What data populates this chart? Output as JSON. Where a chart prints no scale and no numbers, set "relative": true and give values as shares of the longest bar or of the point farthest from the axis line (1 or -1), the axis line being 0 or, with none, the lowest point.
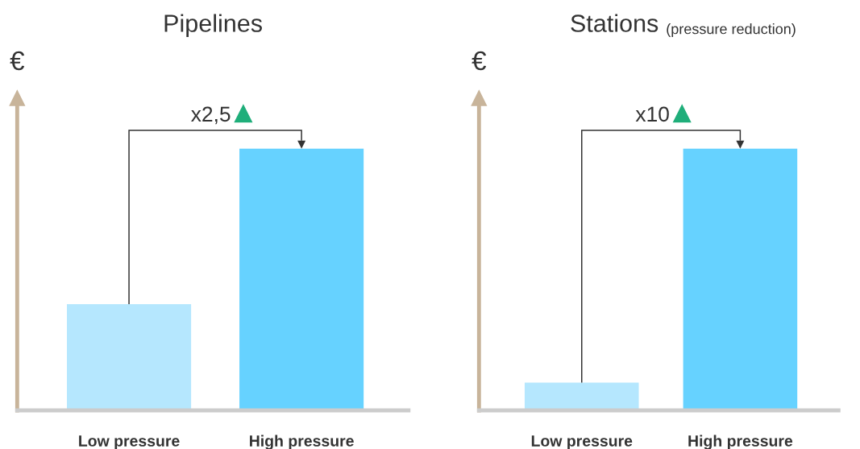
{
  "chart_data": [
    {
      "type": "bar",
      "title": "Pipelines",
      "ylabel": "€",
      "categories": [
        "Low pressure",
        "High pressure"
      ],
      "relative": true,
      "colors": [
        "#b5e7fe",
        "#66d2ff"
      ],
      "values": [
        0.406,
        1
      ],
      "annotations": [
        "x2,5"
      ]
    },
    {
      "type": "bar",
      "title": "Stations",
      "subtitle": "(pressure reduction)",
      "ylabel": "€",
      "categories": [
        "Low pressure",
        "High pressure"
      ],
      "relative": true,
      "colors": [
        "#b5e7fe",
        "#66d2ff"
      ],
      "values": [
        0.106,
        1
      ],
      "annotations": [
        "x10"
      ]
    }
  ]
}
